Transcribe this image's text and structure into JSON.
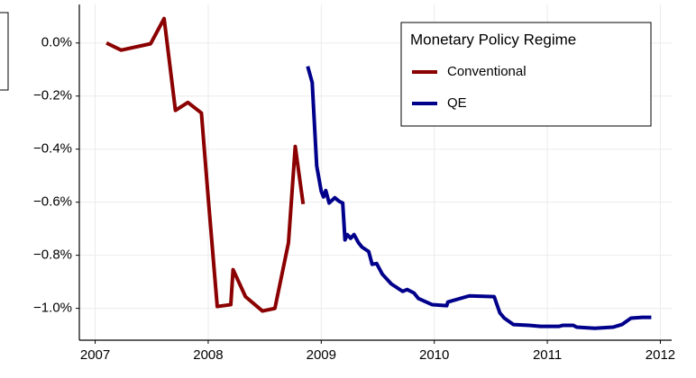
{
  "chart_data": {
    "type": "line",
    "legend_title": "Monetary Policy Regime",
    "legend": "top-right",
    "grid": true,
    "xlim": [
      2006.86,
      2012.1
    ],
    "xticks": [
      2007,
      2008,
      2009,
      2010,
      2011,
      2012
    ],
    "ylim": [
      -1.12,
      0.145
    ],
    "yticks": [
      {
        "value": 0,
        "label": "0.0%"
      },
      {
        "value": -0.2,
        "label": "−0.2%"
      },
      {
        "value": -0.4,
        "label": "−0.4%"
      },
      {
        "value": -0.6,
        "label": "−0.6%"
      },
      {
        "value": -0.8,
        "label": "−0.8%"
      },
      {
        "value": -1.0,
        "label": "−1.0%"
      }
    ],
    "series": [
      {
        "name": "Conventional",
        "color": "#8b0000",
        "x": [
          2007.1,
          2007.23,
          2007.49,
          2007.61,
          2007.71,
          2007.82,
          2007.94,
          2008.0,
          2008.08,
          2008.2,
          2008.22,
          2008.33,
          2008.48,
          2008.59,
          2008.71,
          2008.77,
          2008.84
        ],
        "values": [
          0.0,
          -0.027,
          -0.003,
          0.092,
          -0.254,
          -0.224,
          -0.264,
          -0.583,
          -0.993,
          -0.986,
          -0.854,
          -0.956,
          -1.01,
          -1.0,
          -0.753,
          -0.39,
          -0.607
        ]
      },
      {
        "name": "QE",
        "color": "#00008b",
        "x": [
          2008.88,
          2008.92,
          2008.96,
          2009.0,
          2009.02,
          2009.04,
          2009.07,
          2009.12,
          2009.16,
          2009.19,
          2009.21,
          2009.23,
          2009.26,
          2009.29,
          2009.33,
          2009.36,
          2009.42,
          2009.45,
          2009.49,
          2009.54,
          2009.62,
          2009.72,
          2009.76,
          2009.82,
          2009.86,
          2009.98,
          2010.11,
          2010.12,
          2010.31,
          2010.53,
          2010.58,
          2010.62,
          2010.7,
          2010.84,
          2010.94,
          2011.1,
          2011.14,
          2011.23,
          2011.26,
          2011.42,
          2011.58,
          2011.66,
          2011.74,
          2011.84,
          2011.92
        ],
        "values": [
          -0.088,
          -0.149,
          -0.464,
          -0.559,
          -0.58,
          -0.556,
          -0.603,
          -0.583,
          -0.597,
          -0.603,
          -0.742,
          -0.722,
          -0.736,
          -0.722,
          -0.753,
          -0.769,
          -0.786,
          -0.834,
          -0.831,
          -0.871,
          -0.908,
          -0.936,
          -0.929,
          -0.942,
          -0.963,
          -0.986,
          -0.99,
          -0.976,
          -0.953,
          -0.956,
          -1.017,
          -1.037,
          -1.061,
          -1.064,
          -1.068,
          -1.068,
          -1.064,
          -1.064,
          -1.071,
          -1.075,
          -1.071,
          -1.061,
          -1.037,
          -1.034,
          -1.034
        ]
      }
    ]
  }
}
